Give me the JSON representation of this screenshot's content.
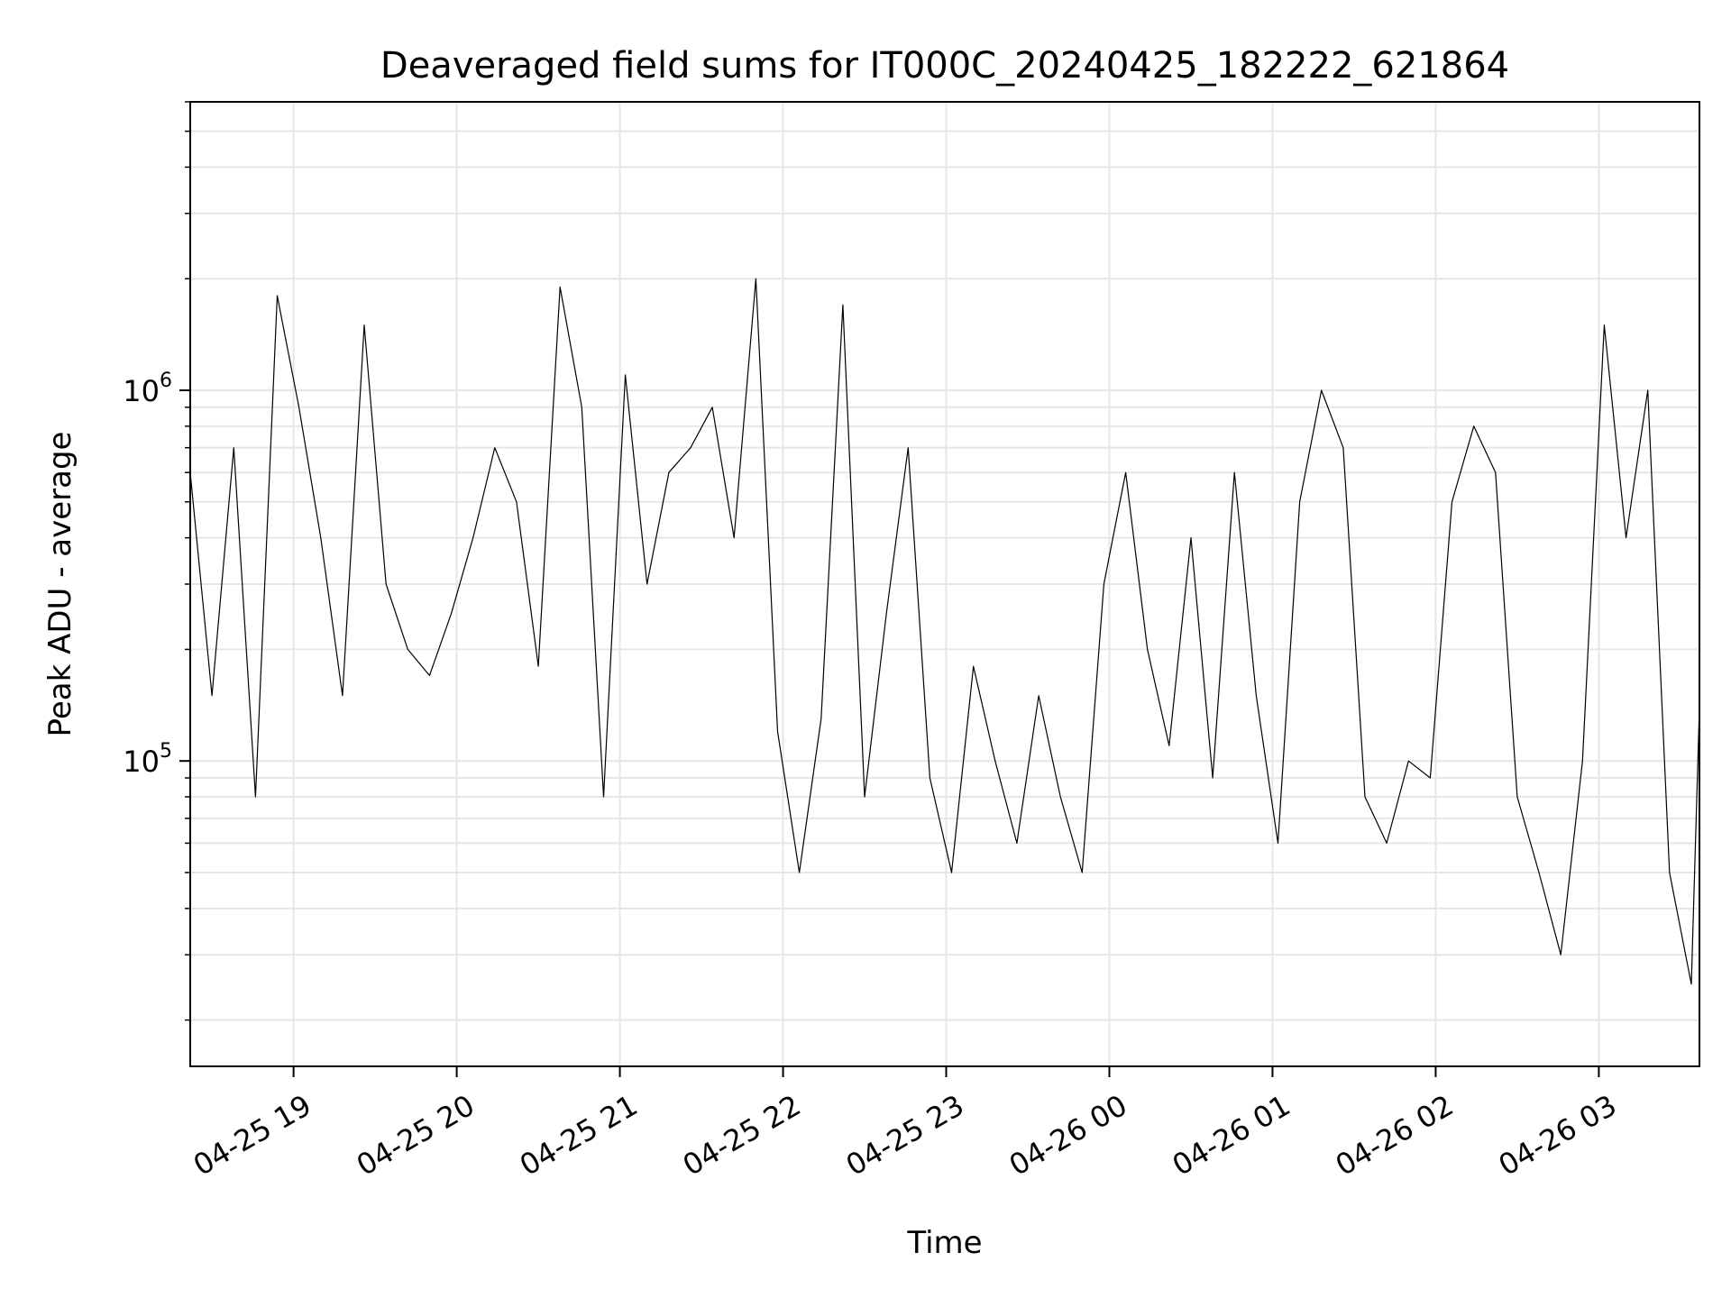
{
  "chart_data": {
    "type": "line",
    "title": "Deaveraged field sums for IT000C_20240425_182222_621864",
    "xlabel": "Time",
    "ylabel": "Peak ADU - average",
    "yscale": "log",
    "ylim": [
      15000,
      6000000
    ],
    "xlim": [
      "2024-04-25 18:22",
      "2024-04-26 03:37"
    ],
    "x_ticks": [
      {
        "value": "2024-04-25 19:00",
        "label": "04-25 19"
      },
      {
        "value": "2024-04-25 20:00",
        "label": "04-25 20"
      },
      {
        "value": "2024-04-25 21:00",
        "label": "04-25 21"
      },
      {
        "value": "2024-04-25 22:00",
        "label": "04-25 22"
      },
      {
        "value": "2024-04-25 23:00",
        "label": "04-25 23"
      },
      {
        "value": "2024-04-26 00:00",
        "label": "04-26 00"
      },
      {
        "value": "2024-04-26 01:00",
        "label": "04-26 01"
      },
      {
        "value": "2024-04-26 02:00",
        "label": "04-26 02"
      },
      {
        "value": "2024-04-26 03:00",
        "label": "04-26 03"
      }
    ],
    "y_ticks": [
      {
        "value": 100000,
        "base": "10",
        "exp": "5"
      },
      {
        "value": 1000000,
        "base": "10",
        "exp": "6"
      }
    ],
    "grid": true,
    "line_color": "#000000",
    "grid_color": "#e6e6e6",
    "series": [
      {
        "x": [
          "2024-04-25 18:22",
          "2024-04-25 18:30",
          "2024-04-25 18:38",
          "2024-04-25 18:46",
          "2024-04-25 18:54",
          "2024-04-25 19:02",
          "2024-04-25 19:10",
          "2024-04-25 19:18",
          "2024-04-25 19:26",
          "2024-04-25 19:34",
          "2024-04-25 19:42",
          "2024-04-25 19:50",
          "2024-04-25 19:58",
          "2024-04-25 20:06",
          "2024-04-25 20:14",
          "2024-04-25 20:22",
          "2024-04-25 20:30",
          "2024-04-25 20:38",
          "2024-04-25 20:46",
          "2024-04-25 20:54",
          "2024-04-25 21:02",
          "2024-04-25 21:10",
          "2024-04-25 21:18",
          "2024-04-25 21:26",
          "2024-04-25 21:34",
          "2024-04-25 21:42",
          "2024-04-25 21:50",
          "2024-04-25 21:58",
          "2024-04-25 22:06",
          "2024-04-25 22:14",
          "2024-04-25 22:22",
          "2024-04-25 22:30",
          "2024-04-25 22:38",
          "2024-04-25 22:46",
          "2024-04-25 22:54",
          "2024-04-25 23:02",
          "2024-04-25 23:10",
          "2024-04-25 23:18",
          "2024-04-25 23:26",
          "2024-04-25 23:34",
          "2024-04-25 23:42",
          "2024-04-25 23:50",
          "2024-04-25 23:58",
          "2024-04-26 00:06",
          "2024-04-26 00:14",
          "2024-04-26 00:22",
          "2024-04-26 00:30",
          "2024-04-26 00:38",
          "2024-04-26 00:46",
          "2024-04-26 00:54",
          "2024-04-26 01:02",
          "2024-04-26 01:10",
          "2024-04-26 01:18",
          "2024-04-26 01:26",
          "2024-04-26 01:34",
          "2024-04-26 01:42",
          "2024-04-26 01:50",
          "2024-04-26 01:58",
          "2024-04-26 02:06",
          "2024-04-26 02:14",
          "2024-04-26 02:22",
          "2024-04-26 02:30",
          "2024-04-26 02:38",
          "2024-04-26 02:46",
          "2024-04-26 02:54",
          "2024-04-26 03:02",
          "2024-04-26 03:10",
          "2024-04-26 03:18",
          "2024-04-26 03:26",
          "2024-04-26 03:34",
          "2024-04-26 03:37"
        ],
        "y": [
          600000,
          150000,
          700000,
          80000,
          1800000,
          900000,
          400000,
          150000,
          1500000,
          300000,
          200000,
          170000,
          250000,
          400000,
          700000,
          500000,
          180000,
          1900000,
          900000,
          80000,
          1100000,
          300000,
          600000,
          700000,
          900000,
          400000,
          2000000,
          120000,
          50000,
          130000,
          1700000,
          80000,
          250000,
          700000,
          90000,
          50000,
          180000,
          100000,
          60000,
          150000,
          80000,
          50000,
          300000,
          600000,
          200000,
          110000,
          400000,
          90000,
          600000,
          150000,
          60000,
          500000,
          1000000,
          700000,
          80000,
          60000,
          100000,
          90000,
          500000,
          800000,
          600000,
          80000,
          50000,
          30000,
          100000,
          1500000,
          400000,
          1000000,
          50000,
          25000,
          140000
        ]
      }
    ]
  }
}
